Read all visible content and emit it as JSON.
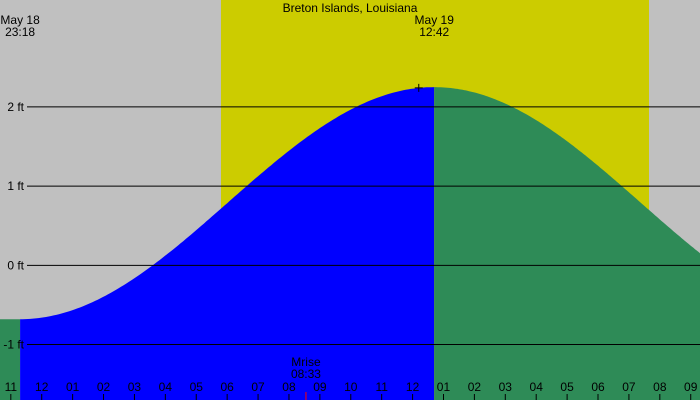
{
  "chart_data": {
    "type": "area",
    "title": "Breton Islands, Louisiana",
    "y_unit": "ft",
    "ylim": [
      -1.7,
      3.35
    ],
    "y_ticks": [
      {
        "value": 2,
        "label": "2 ft"
      },
      {
        "value": 1,
        "label": "1 ft"
      },
      {
        "value": 0,
        "label": "0 ft"
      },
      {
        "value": -1,
        "label": "-1 ft"
      }
    ],
    "xlim_hours": [
      -1.35,
      21.3
    ],
    "x_ticks": [
      "11",
      "12",
      "01",
      "02",
      "03",
      "04",
      "05",
      "06",
      "07",
      "08",
      "09",
      "10",
      "11",
      "12",
      "01",
      "02",
      "03",
      "04",
      "05",
      "06",
      "07",
      "08",
      "09"
    ],
    "daylight": {
      "start_hour": 5.8,
      "end_hour": 19.65
    },
    "low_tide": {
      "date": "May 18",
      "time": "23:18",
      "hour": -0.7,
      "height": -0.68
    },
    "high_tide": {
      "date": "May 19",
      "time": "12:42",
      "hour": 12.7,
      "height": 2.25
    },
    "current_hour": 12.2,
    "moonrise": {
      "label": "Mrise",
      "time": "08:33",
      "hour": 8.55
    },
    "colors": {
      "background": "#c0c0c0",
      "daylight": "#cccc00",
      "past_tide": "#0000ff",
      "future_tide": "#2e8b57",
      "moonrise_tick": "#ff0000"
    }
  }
}
